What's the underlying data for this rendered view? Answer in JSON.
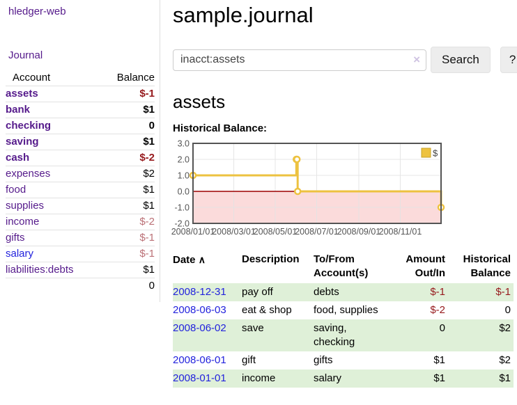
{
  "app": {
    "brand": "hledger-web"
  },
  "nav": {
    "journal": "Journal"
  },
  "sidebar": {
    "header": {
      "account": "Account",
      "balance": "Balance"
    },
    "accounts": [
      {
        "name": "assets",
        "depth": 0,
        "balance": "$-1",
        "selected": true,
        "amount_style": "neg-strong",
        "link_style": "visited"
      },
      {
        "name": "bank",
        "depth": 1,
        "balance": "$1",
        "selected": true,
        "amount_style": "pos",
        "link_style": "visited"
      },
      {
        "name": "checking",
        "depth": 2,
        "balance": "0",
        "selected": true,
        "amount_style": "pos",
        "link_style": "visited"
      },
      {
        "name": "saving",
        "depth": 2,
        "balance": "$1",
        "selected": true,
        "amount_style": "pos",
        "link_style": "visited"
      },
      {
        "name": "cash",
        "depth": 1,
        "balance": "$-2",
        "selected": true,
        "amount_style": "neg-strong",
        "link_style": "visited"
      },
      {
        "name": "expenses",
        "depth": 0,
        "balance": "$2",
        "selected": false,
        "amount_style": "pos",
        "link_style": "visited"
      },
      {
        "name": "food",
        "depth": 1,
        "balance": "$1",
        "selected": false,
        "amount_style": "pos",
        "link_style": "visited"
      },
      {
        "name": "supplies",
        "depth": 1,
        "balance": "$1",
        "selected": false,
        "amount_style": "pos",
        "link_style": "visited"
      },
      {
        "name": "income",
        "depth": 0,
        "balance": "$-2",
        "selected": false,
        "amount_style": "neg-dim",
        "link_style": "visited"
      },
      {
        "name": "gifts",
        "depth": 1,
        "balance": "$-1",
        "selected": false,
        "amount_style": "neg-dim",
        "link_style": "visited"
      },
      {
        "name": "salary",
        "depth": 1,
        "balance": "$-1",
        "selected": false,
        "amount_style": "neg-dim",
        "link_style": "unvisited"
      },
      {
        "name": "liabilities:debts",
        "depth": 0,
        "balance": "$1",
        "selected": false,
        "amount_style": "pos",
        "link_style": "visited"
      }
    ],
    "total": "0"
  },
  "header": {
    "title": "sample.journal"
  },
  "search": {
    "query": "inacct:assets",
    "clear_icon": "×",
    "search_button": "Search",
    "help_button": "?"
  },
  "account_page": {
    "heading": "assets",
    "chart_label": "Historical Balance:"
  },
  "chart_data": {
    "type": "line",
    "step": true,
    "title": "Historical Balance:",
    "series": [
      {
        "name": "$",
        "color": "#EDC240",
        "points": [
          {
            "date": "2008-01-01",
            "value": 1
          },
          {
            "date": "2008-06-01",
            "value": 2
          },
          {
            "date": "2008-06-02",
            "value": 2
          },
          {
            "date": "2008-06-03",
            "value": 0
          },
          {
            "date": "2008-12-31",
            "value": -1
          }
        ]
      }
    ],
    "xrange": [
      "2008-01-01",
      "2008-12-31"
    ],
    "ylim": [
      -2,
      3
    ],
    "yticks": [
      3.0,
      2.0,
      1.0,
      0.0,
      -1.0,
      -2.0
    ],
    "xticks": [
      "2008/01/01",
      "2008/03/01",
      "2008/05/01",
      "2008/07/01",
      "2008/09/01",
      "2008/11/01"
    ],
    "grid": true,
    "legend_position": "top-right",
    "colors": {
      "negative_fill": "#fbdbdb",
      "zero_line": "#9b0000",
      "border": "#545454",
      "gridline": "#e3e3e3",
      "tick_text": "#545454",
      "marker_fill": "#ffffff"
    }
  },
  "register": {
    "columns": {
      "date": "Date",
      "sort_icon": "∧",
      "description": "Description",
      "accounts": "To/From Account(s)",
      "amount": "Amount Out/In",
      "balance": "Historical Balance"
    },
    "rows": [
      {
        "date": "2008-12-31",
        "description": "pay off",
        "accounts": "debts",
        "amount": "$-1",
        "amount_style": "neg-strong",
        "balance": "$-1",
        "balance_style": "neg-strong",
        "shaded": true
      },
      {
        "date": "2008-06-03",
        "description": "eat & shop",
        "accounts": "food, supplies",
        "amount": "$-2",
        "amount_style": "neg-strong",
        "balance": "0",
        "balance_style": "pos",
        "shaded": false
      },
      {
        "date": "2008-06-02",
        "description": "save",
        "accounts": "saving, checking",
        "amount": "0",
        "amount_style": "pos",
        "balance": "$2",
        "balance_style": "pos",
        "shaded": true
      },
      {
        "date": "2008-06-01",
        "description": "gift",
        "accounts": "gifts",
        "amount": "$1",
        "amount_style": "pos",
        "balance": "$2",
        "balance_style": "pos",
        "shaded": false
      },
      {
        "date": "2008-01-01",
        "description": "income",
        "accounts": "salary",
        "amount": "$1",
        "amount_style": "pos",
        "balance": "$1",
        "balance_style": "pos",
        "shaded": true
      }
    ]
  }
}
